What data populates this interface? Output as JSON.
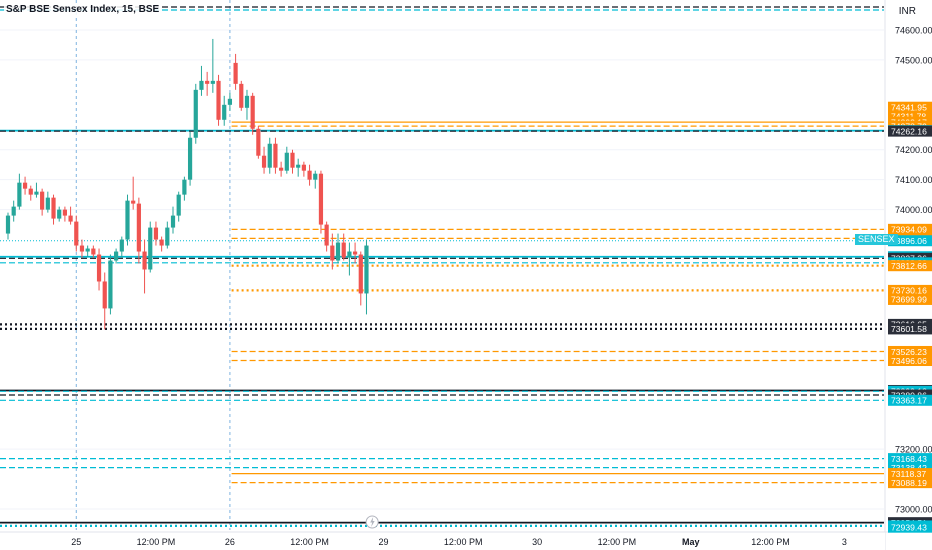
{
  "header": {
    "title": "S&P BSE Sensex Index, 15, BSE",
    "currency": "INR"
  },
  "symbol_tag": "SENSEX",
  "footer_icon": "lightning-bolt-icon",
  "colors": {
    "up": "#26a69a",
    "down": "#ef5350",
    "orange": "#ff9800",
    "teal": "#00bcd4",
    "black": "#131722",
    "vline": "#7fb3e0",
    "grid": "#f0f3fa"
  },
  "chart_data": {
    "type": "candlestick",
    "title": "S&P BSE Sensex Index, 15, BSE",
    "y_range": [
      72930,
      74680
    ],
    "y_ticks": [
      {
        "value": 74600,
        "label": "74600.00"
      },
      {
        "value": 74500,
        "label": "74500.00"
      },
      {
        "value": 74200,
        "label": "74200.00"
      },
      {
        "value": 74100,
        "label": "74100.00"
      },
      {
        "value": 74000,
        "label": "74000.00"
      },
      {
        "value": 73200,
        "label": "73200.00"
      },
      {
        "value": 73000,
        "label": "73000.00"
      }
    ],
    "x_ticks": [
      {
        "label": "12:00 PM",
        "bar": -7
      },
      {
        "label": "25",
        "bar": 12
      },
      {
        "label": "12:00 PM",
        "bar": 26
      },
      {
        "label": "26",
        "bar": 39
      },
      {
        "label": "12:00 PM",
        "bar": 53
      },
      {
        "label": "29",
        "bar": 66
      },
      {
        "label": "12:00 PM",
        "bar": 80
      },
      {
        "label": "30",
        "bar": 93
      },
      {
        "label": "12:00 PM",
        "bar": 107
      },
      {
        "label": "May",
        "bar": 120
      },
      {
        "label": "12:00 PM",
        "bar": 134
      },
      {
        "label": "3",
        "bar": 147
      },
      {
        "label": "12:00 PM",
        "bar": 161
      }
    ],
    "day_separators": [
      12,
      39
    ],
    "candles": [
      [
        73920,
        73990,
        73900,
        73980
      ],
      [
        73980,
        74030,
        73960,
        74010
      ],
      [
        74010,
        74120,
        74000,
        74090
      ],
      [
        74090,
        74110,
        74050,
        74070
      ],
      [
        74070,
        74080,
        74030,
        74050
      ],
      [
        74050,
        74090,
        74040,
        74060
      ],
      [
        74060,
        74070,
        73980,
        74000
      ],
      [
        74000,
        74060,
        73990,
        74040
      ],
      [
        74040,
        74050,
        73950,
        73970
      ],
      [
        73970,
        74010,
        73960,
        74000
      ],
      [
        74000,
        74010,
        73960,
        73980
      ],
      [
        73980,
        74010,
        73950,
        73960
      ],
      [
        73960,
        73980,
        73860,
        73880
      ],
      [
        73880,
        73900,
        73840,
        73860
      ],
      [
        73860,
        73880,
        73840,
        73870
      ],
      [
        73870,
        73880,
        73840,
        73850
      ],
      [
        73850,
        73870,
        73730,
        73760
      ],
      [
        73760,
        73790,
        73600,
        73670
      ],
      [
        73670,
        73850,
        73650,
        73830
      ],
      [
        73830,
        73870,
        73820,
        73860
      ],
      [
        73860,
        73910,
        73840,
        73900
      ],
      [
        73900,
        74050,
        73880,
        74030
      ],
      [
        74030,
        74110,
        74000,
        74020
      ],
      [
        74020,
        74040,
        73820,
        73860
      ],
      [
        73860,
        73900,
        73720,
        73800
      ],
      [
        73800,
        73960,
        73790,
        73940
      ],
      [
        73940,
        73960,
        73880,
        73900
      ],
      [
        73900,
        73910,
        73860,
        73880
      ],
      [
        73880,
        73960,
        73870,
        73940
      ],
      [
        73940,
        74010,
        73920,
        73980
      ],
      [
        73980,
        74060,
        73960,
        74050
      ],
      [
        74050,
        74110,
        74030,
        74100
      ],
      [
        74100,
        74260,
        74080,
        74240
      ],
      [
        74240,
        74420,
        74220,
        74400
      ],
      [
        74400,
        74480,
        74380,
        74430
      ],
      [
        74430,
        74460,
        74380,
        74420
      ],
      [
        74420,
        74570,
        74390,
        74430
      ],
      [
        74430,
        74450,
        74280,
        74300
      ],
      [
        74300,
        74380,
        74280,
        74350
      ],
      [
        74350,
        74390,
        74330,
        74370
      ],
      [
        74490,
        74520,
        74400,
        74420
      ],
      [
        74420,
        74430,
        74330,
        74340
      ],
      [
        74340,
        74400,
        74300,
        74380
      ],
      [
        74380,
        74390,
        74250,
        74270
      ],
      [
        74270,
        74280,
        74170,
        74180
      ],
      [
        74180,
        74210,
        74120,
        74140
      ],
      [
        74140,
        74240,
        74120,
        74220
      ],
      [
        74220,
        74240,
        74120,
        74140
      ],
      [
        74140,
        74160,
        74110,
        74130
      ],
      [
        74130,
        74210,
        74120,
        74190
      ],
      [
        74190,
        74200,
        74120,
        74140
      ],
      [
        74140,
        74170,
        74110,
        74150
      ],
      [
        74150,
        74160,
        74110,
        74130
      ],
      [
        74130,
        74150,
        74080,
        74100
      ],
      [
        74100,
        74130,
        74070,
        74120
      ],
      [
        74120,
        74130,
        73920,
        73950
      ],
      [
        73950,
        73960,
        73860,
        73880
      ],
      [
        73880,
        73920,
        73800,
        73830
      ],
      [
        73830,
        73920,
        73820,
        73890
      ],
      [
        73890,
        73920,
        73830,
        73840
      ],
      [
        73840,
        73890,
        73780,
        73860
      ],
      [
        73860,
        73890,
        73820,
        73850
      ],
      [
        73850,
        73860,
        73680,
        73720
      ],
      [
        73720,
        73900,
        73650,
        73880
      ]
    ],
    "last_price": 73896.06,
    "levels": [
      {
        "value": 74341.95,
        "label": "74341.95",
        "color": "orange",
        "style": "none",
        "from": 40
      },
      {
        "value": 74311.78,
        "label": "74311.78",
        "color": "orange",
        "style": "none",
        "from": 40
      },
      {
        "value": 74292.17,
        "label": "74292.17",
        "color": "orange",
        "style": "solid",
        "from": 40
      },
      {
        "value": 74278.79,
        "label": "74278.79",
        "color": "orange",
        "style": "dash",
        "from": 40
      },
      {
        "value": 74263.72,
        "label": "74263.72",
        "color": "teal",
        "style": "solid2",
        "from": 0
      },
      {
        "value": 74262.16,
        "label": "74262.16",
        "color": "black",
        "style": "dash",
        "from": 0
      },
      {
        "value": 73934.09,
        "label": "73934.09",
        "color": "orange",
        "style": "dash",
        "from": 40
      },
      {
        "value": 73903.92,
        "label": "73903.92",
        "color": "orange",
        "style": "dash",
        "from": 40
      },
      {
        "value": 73842.68,
        "label": "73842.68",
        "color": "teal",
        "style": "solid2",
        "from": 0
      },
      {
        "value": 73837.36,
        "label": "73837.36",
        "color": "black",
        "style": "dash",
        "from": 0
      },
      {
        "value": 73822.29,
        "label": "73822.29",
        "color": "teal",
        "style": "dash",
        "from": 0
      },
      {
        "value": 73812.66,
        "label": "73812.66",
        "color": "orange",
        "style": "dot",
        "from": 40
      },
      {
        "value": 73730.16,
        "label": "73730.16",
        "color": "orange",
        "style": "dot",
        "from": 40
      },
      {
        "value": 73699.99,
        "label": "73699.99",
        "color": "orange",
        "style": "none",
        "from": 40
      },
      {
        "value": 73616.65,
        "label": "73616.65",
        "color": "black",
        "style": "dot",
        "from": 0
      },
      {
        "value": 73601.58,
        "label": "73601.58",
        "color": "black",
        "style": "dot",
        "from": 0
      },
      {
        "value": 73526.23,
        "label": "73526.23",
        "color": "orange",
        "style": "dash",
        "from": 40
      },
      {
        "value": 73496.06,
        "label": "73496.06",
        "color": "orange",
        "style": "dash",
        "from": 40
      },
      {
        "value": 73395.94,
        "label": "73395.94",
        "color": "black",
        "style": "solid2",
        "from": 0
      },
      {
        "value": 73393.18,
        "label": "73393.18",
        "color": "teal",
        "style": "dash",
        "from": 0
      },
      {
        "value": 73380.86,
        "label": "73380.86",
        "color": "black",
        "style": "dash",
        "from": 0
      },
      {
        "value": 73363.17,
        "label": "73363.17",
        "color": "teal",
        "style": "dash",
        "from": 0
      },
      {
        "value": 73168.43,
        "label": "73168.43",
        "color": "teal",
        "style": "dash",
        "from": 0
      },
      {
        "value": 73138.42,
        "label": "73138.42",
        "color": "teal",
        "style": "dash",
        "from": 0
      },
      {
        "value": 73118.37,
        "label": "73118.37",
        "color": "orange",
        "style": "solid",
        "from": 40
      },
      {
        "value": 73088.19,
        "label": "73088.19",
        "color": "orange",
        "style": "dash",
        "from": 40
      },
      {
        "value": 72954.51,
        "label": "72954.51",
        "color": "black",
        "style": "solid2",
        "from": 0
      },
      {
        "value": 72943.68,
        "label": "72943.68",
        "color": "teal",
        "style": "dot",
        "from": 0
      },
      {
        "value": 72939.43,
        "label": "72939.43",
        "color": "teal",
        "style": "none",
        "from": 0
      }
    ]
  }
}
